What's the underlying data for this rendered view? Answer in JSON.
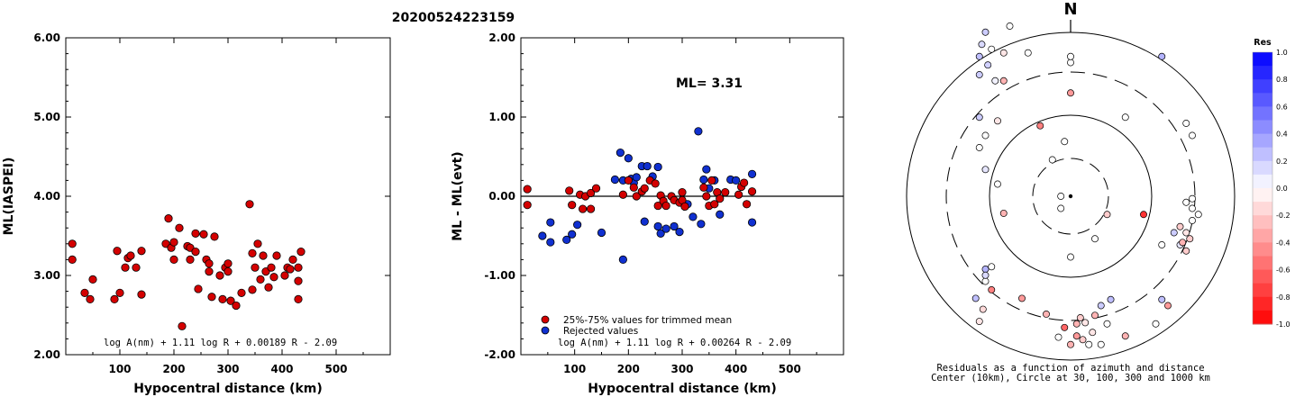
{
  "title": "20200524223159",
  "chart_data": [
    {
      "type": "scatter",
      "xlabel": "Hypocentral distance (km)",
      "ylabel": "ML(IASPEI)",
      "xlim": [
        0,
        600
      ],
      "ylim": [
        2.0,
        6.0
      ],
      "xticks": [
        "100",
        "200",
        "300",
        "400",
        "500"
      ],
      "yticks": [
        "2.00",
        "3.00",
        "4.00",
        "5.00",
        "6.00"
      ],
      "formula": "log A(nm) + 1.11 log R + 0.00189 R - 2.09",
      "point_color": "#d40000",
      "points": [
        [
          12,
          3.4
        ],
        [
          12,
          3.2
        ],
        [
          35,
          2.78
        ],
        [
          50,
          2.95
        ],
        [
          45,
          2.7
        ],
        [
          90,
          2.7
        ],
        [
          95,
          3.31
        ],
        [
          100,
          2.78
        ],
        [
          110,
          3.1
        ],
        [
          115,
          3.22
        ],
        [
          120,
          3.25
        ],
        [
          130,
          3.1
        ],
        [
          140,
          3.31
        ],
        [
          140,
          2.76
        ],
        [
          185,
          3.4
        ],
        [
          190,
          3.72
        ],
        [
          195,
          3.35
        ],
        [
          200,
          3.42
        ],
        [
          200,
          3.2
        ],
        [
          210,
          3.6
        ],
        [
          215,
          2.36
        ],
        [
          225,
          3.37
        ],
        [
          230,
          3.35
        ],
        [
          230,
          3.2
        ],
        [
          240,
          3.53
        ],
        [
          240,
          3.3
        ],
        [
          245,
          2.83
        ],
        [
          255,
          3.52
        ],
        [
          260,
          3.2
        ],
        [
          265,
          3.05
        ],
        [
          265,
          3.15
        ],
        [
          270,
          2.73
        ],
        [
          275,
          3.49
        ],
        [
          285,
          3.0
        ],
        [
          290,
          2.7
        ],
        [
          295,
          3.1
        ],
        [
          300,
          3.15
        ],
        [
          300,
          3.05
        ],
        [
          305,
          2.68
        ],
        [
          315,
          2.62
        ],
        [
          325,
          2.78
        ],
        [
          340,
          3.9
        ],
        [
          345,
          3.28
        ],
        [
          345,
          2.82
        ],
        [
          350,
          3.1
        ],
        [
          355,
          3.4
        ],
        [
          360,
          2.95
        ],
        [
          365,
          3.25
        ],
        [
          370,
          3.05
        ],
        [
          375,
          2.85
        ],
        [
          380,
          3.1
        ],
        [
          385,
          2.98
        ],
        [
          390,
          3.25
        ],
        [
          405,
          3.0
        ],
        [
          410,
          3.1
        ],
        [
          415,
          3.08
        ],
        [
          420,
          3.2
        ],
        [
          430,
          2.93
        ],
        [
          430,
          3.1
        ],
        [
          430,
          2.7
        ],
        [
          435,
          3.3
        ]
      ]
    },
    {
      "type": "scatter",
      "xlabel": "Hypocentral distance (km)",
      "ylabel": "ML - ML(evt)",
      "xlim": [
        0,
        600
      ],
      "ylim": [
        -2.0,
        2.0
      ],
      "xticks": [
        "100",
        "200",
        "300",
        "400",
        "500"
      ],
      "yticks": [
        "-2.00",
        "-1.00",
        "0.00",
        "1.00",
        "2.00"
      ],
      "annotation": "ML= 3.31",
      "formula": "log A(nm) + 1.11 log R + 0.00264 R - 2.09",
      "legend": [
        {
          "label": "25%-75% values for trimmed mean",
          "color": "#d40000"
        },
        {
          "label": "Rejected values",
          "color": "#1030d0"
        }
      ],
      "trimmed_points": [
        [
          12,
          0.09
        ],
        [
          12,
          -0.11
        ],
        [
          90,
          0.07
        ],
        [
          95,
          -0.11
        ],
        [
          110,
          0.02
        ],
        [
          115,
          -0.16
        ],
        [
          120,
          0.0
        ],
        [
          130,
          -0.16
        ],
        [
          130,
          0.04
        ],
        [
          140,
          0.1
        ],
        [
          190,
          0.02
        ],
        [
          200,
          0.2
        ],
        [
          210,
          0.11
        ],
        [
          215,
          0.0
        ],
        [
          225,
          0.06
        ],
        [
          230,
          0.1
        ],
        [
          240,
          0.2
        ],
        [
          250,
          0.16
        ],
        [
          255,
          -0.12
        ],
        [
          260,
          0.01
        ],
        [
          265,
          -0.06
        ],
        [
          270,
          -0.12
        ],
        [
          280,
          0.0
        ],
        [
          285,
          -0.05
        ],
        [
          295,
          -0.08
        ],
        [
          300,
          -0.05
        ],
        [
          300,
          0.05
        ],
        [
          305,
          -0.13
        ],
        [
          340,
          0.11
        ],
        [
          345,
          0.0
        ],
        [
          350,
          -0.12
        ],
        [
          355,
          0.2
        ],
        [
          360,
          -0.1
        ],
        [
          365,
          0.05
        ],
        [
          370,
          -0.03
        ],
        [
          380,
          0.05
        ],
        [
          405,
          0.02
        ],
        [
          410,
          0.12
        ],
        [
          415,
          0.17
        ],
        [
          420,
          -0.1
        ],
        [
          430,
          0.06
        ]
      ],
      "rejected_points": [
        [
          40,
          -0.5
        ],
        [
          55,
          -0.58
        ],
        [
          55,
          -0.33
        ],
        [
          85,
          -0.55
        ],
        [
          95,
          -0.48
        ],
        [
          105,
          -0.36
        ],
        [
          150,
          -0.46
        ],
        [
          175,
          0.21
        ],
        [
          185,
          0.55
        ],
        [
          190,
          -0.8
        ],
        [
          190,
          0.2
        ],
        [
          200,
          0.48
        ],
        [
          205,
          0.22
        ],
        [
          210,
          0.17
        ],
        [
          215,
          0.24
        ],
        [
          225,
          0.38
        ],
        [
          230,
          -0.32
        ],
        [
          235,
          0.38
        ],
        [
          245,
          0.25
        ],
        [
          255,
          0.37
        ],
        [
          255,
          -0.38
        ],
        [
          260,
          -0.47
        ],
        [
          270,
          -0.41
        ],
        [
          285,
          -0.38
        ],
        [
          295,
          -0.45
        ],
        [
          310,
          -0.1
        ],
        [
          320,
          -0.26
        ],
        [
          330,
          0.82
        ],
        [
          335,
          -0.35
        ],
        [
          340,
          0.21
        ],
        [
          345,
          0.34
        ],
        [
          350,
          0.1
        ],
        [
          360,
          0.2
        ],
        [
          370,
          -0.23
        ],
        [
          390,
          0.21
        ],
        [
          400,
          0.2
        ],
        [
          430,
          0.28
        ],
        [
          430,
          -0.33
        ]
      ]
    },
    {
      "type": "scatter",
      "north_label": "N",
      "caption_line1": "Residuals as a function of azimuth and distance",
      "caption_line2": "Center (10km), Circle at 30, 100, 300 and 1000 km",
      "colorbar_title": "Res",
      "colorbar_ticks": [
        "1.0",
        "0.8",
        "0.6",
        "0.4",
        "0.2",
        "0.0",
        "-0.2",
        "-0.4",
        "-0.6",
        "-0.8",
        "-1.0"
      ],
      "rings_km": [
        30,
        100,
        300,
        1000
      ],
      "points": [
        [
          -75,
          115,
          0.25
        ],
        [
          -73,
          125,
          0.15
        ],
        [
          -70,
          135,
          0.2
        ],
        [
          -65,
          121,
          0.0
        ],
        [
          -68,
          108,
          0.18
        ],
        [
          -75,
          100,
          0.2
        ],
        [
          -62,
          95,
          0.05
        ],
        [
          -55,
          118,
          -0.1
        ],
        [
          -55,
          95,
          -0.3
        ],
        [
          -50,
          140,
          0.0
        ],
        [
          -35,
          118,
          0.0
        ],
        [
          -70,
          22,
          0.1
        ],
        [
          -75,
          40,
          0.0
        ],
        [
          -55,
          -14,
          -0.3
        ],
        [
          -78,
          -84,
          0.25
        ],
        [
          -70,
          -60,
          0.3
        ],
        [
          -72,
          -93,
          -0.15
        ],
        [
          -75,
          -103,
          -0.1
        ],
        [
          -70,
          -70,
          0.0
        ],
        [
          -65,
          -77,
          -0.5
        ],
        [
          -40,
          -84,
          -0.4
        ],
        [
          -20,
          -97,
          -0.3
        ],
        [
          -10,
          -116,
          0.0
        ],
        [
          -5,
          -108,
          -0.6
        ],
        [
          0,
          -122,
          -0.3
        ],
        [
          5,
          -115,
          -0.4
        ],
        [
          5,
          -105,
          -0.3
        ],
        [
          8,
          -100,
          -0.2
        ],
        [
          10,
          -118,
          -0.2
        ],
        [
          12,
          -104,
          -0.1
        ],
        [
          15,
          -122,
          0.0
        ],
        [
          18,
          -112,
          -0.1
        ],
        [
          20,
          -98,
          -0.3
        ],
        [
          25,
          -90,
          0.2
        ],
        [
          25,
          -122,
          0.0
        ],
        [
          30,
          -105,
          0.0
        ],
        [
          33,
          -85,
          0.25
        ],
        [
          45,
          -115,
          -0.3
        ],
        [
          70,
          -105,
          0.0
        ],
        [
          75,
          -85,
          0.25
        ],
        [
          80,
          -90,
          -0.4
        ],
        [
          75,
          -40,
          0.0
        ],
        [
          85,
          -30,
          0.2
        ],
        [
          90,
          -25,
          -0.2
        ],
        [
          95,
          -30,
          -0.1
        ],
        [
          98,
          -35,
          -0.2
        ],
        [
          90,
          -40,
          0.1
        ],
        [
          100,
          -20,
          0.0
        ],
        [
          92,
          -38,
          -0.3
        ],
        [
          95,
          -45,
          -0.2
        ],
        [
          100,
          -10,
          0.0
        ],
        [
          105,
          -15,
          0.0
        ],
        [
          95,
          -5,
          0.0
        ],
        [
          100,
          -2,
          0.0
        ],
        [
          -8,
          0,
          0.0
        ],
        [
          -8,
          -10,
          0.0
        ],
        [
          0,
          -50,
          0.0
        ],
        [
          20,
          -35,
          0.0
        ],
        [
          30,
          -15,
          -0.2
        ],
        [
          60,
          -15,
          -0.8
        ],
        [
          -15,
          30,
          0.0
        ],
        [
          -25,
          58,
          -0.5
        ],
        [
          -60,
          10,
          0.0
        ],
        [
          -5,
          45,
          0.0
        ],
        [
          0,
          110,
          0.0
        ],
        [
          0,
          115,
          0.0
        ],
        [
          45,
          65,
          0.0
        ],
        [
          75,
          115,
          0.3
        ],
        [
          95,
          60,
          0.0
        ],
        [
          100,
          50,
          0.0
        ],
        [
          -70,
          50,
          0.0
        ],
        [
          0,
          85,
          -0.4
        ],
        [
          -60,
          62,
          -0.1
        ],
        [
          -75,
          65,
          0.2
        ],
        [
          -70,
          -65,
          0.15
        ],
        [
          -65,
          -58,
          0.0
        ]
      ]
    }
  ]
}
